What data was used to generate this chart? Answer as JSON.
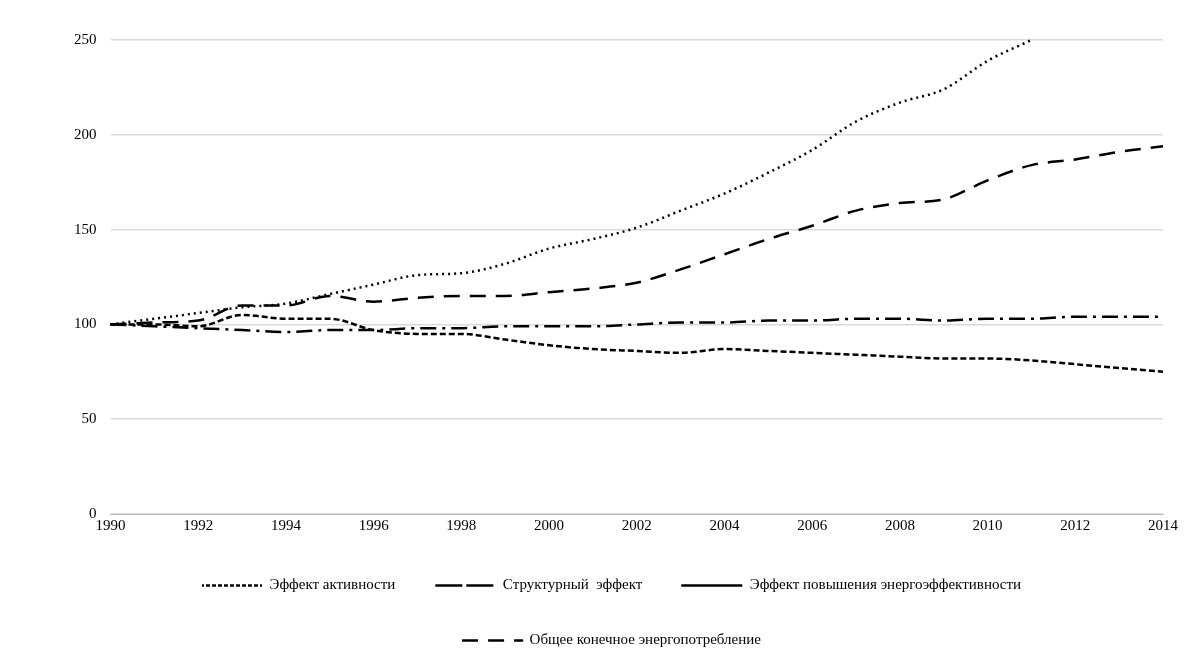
{
  "chart_data": {
    "type": "line",
    "x": [
      1990,
      1991,
      1992,
      1993,
      1994,
      1995,
      1996,
      1997,
      1998,
      1999,
      2000,
      2001,
      2002,
      2003,
      2004,
      2005,
      2006,
      2007,
      2008,
      2009,
      2010,
      2011,
      2012,
      2013,
      2014
    ],
    "xlim": [
      1990,
      2014
    ],
    "xticks": [
      1990,
      1992,
      1994,
      1996,
      1998,
      2000,
      2002,
      2004,
      2006,
      2008,
      2010,
      2012,
      2014
    ],
    "ylim": [
      0,
      250
    ],
    "yticks": [
      0,
      50,
      100,
      150,
      200,
      250
    ],
    "grid": "y",
    "legend": "bottom",
    "marker": "none",
    "series": [
      {
        "name": "Эффект активности",
        "color": "#000000",
        "line_style": "dotted",
        "values": [
          100,
          103,
          106,
          109,
          111,
          116,
          121,
          126,
          127,
          132,
          140,
          145,
          151,
          160,
          169,
          180,
          192,
          207,
          217,
          224,
          239,
          250,
          null,
          null,
          null
        ]
      },
      {
        "name": "Структурный  эффект",
        "color": "#000000",
        "line_style": "dashdot",
        "values": [
          100,
          99,
          98,
          97,
          96,
          97,
          97,
          98,
          98,
          99,
          99,
          99,
          100,
          101,
          101,
          102,
          102,
          103,
          103,
          102,
          103,
          103,
          104,
          104,
          104
        ]
      },
      {
        "name": "Эффект повышения энергоэффективности",
        "color": "#000000",
        "line_style": "dashed",
        "values": [
          100,
          100,
          99,
          105,
          103,
          103,
          97,
          95,
          95,
          92,
          89,
          87,
          86,
          85,
          87,
          86,
          85,
          84,
          83,
          82,
          82,
          81,
          79,
          77,
          75
        ]
      },
      {
        "name": "Общее конечное энергопотребление",
        "color": "#000000",
        "line_style": "longdashed",
        "values": [
          100,
          101,
          102,
          110,
          110,
          115,
          112,
          114,
          115,
          115,
          117,
          119,
          122,
          129,
          137,
          145,
          152,
          160,
          164,
          166,
          176,
          184,
          187,
          191,
          194
        ]
      }
    ]
  }
}
